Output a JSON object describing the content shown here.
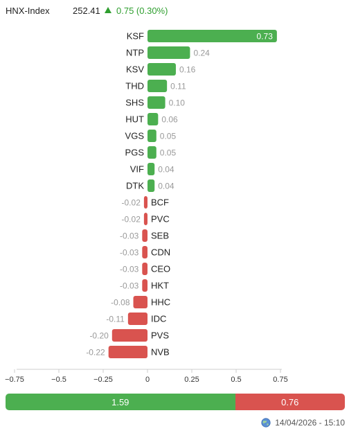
{
  "header": {
    "index_name": "HNX-Index",
    "index_value": "252.41",
    "change": "0.75 (0.30%)",
    "up_color": "#2e9e2e",
    "arrow_icon": "up-triangle-icon"
  },
  "chart_data": {
    "type": "bar",
    "orientation": "horizontal",
    "categories": [
      "KSF",
      "NTP",
      "KSV",
      "THD",
      "SHS",
      "HUT",
      "VGS",
      "PGS",
      "VIF",
      "DTK",
      "BCF",
      "PVC",
      "SEB",
      "CDN",
      "CEO",
      "HKT",
      "HHC",
      "IDC",
      "PVS",
      "NVB"
    ],
    "values": [
      0.73,
      0.24,
      0.16,
      0.11,
      0.1,
      0.06,
      0.05,
      0.05,
      0.04,
      0.04,
      -0.02,
      -0.02,
      -0.03,
      -0.03,
      -0.03,
      -0.03,
      -0.08,
      -0.11,
      -0.2,
      -0.22
    ],
    "labels": [
      "0.73",
      "0.24",
      "0.16",
      "0.11",
      "0.10",
      "0.06",
      "0.05",
      "0.05",
      "0.04",
      "0.04",
      "-0.02",
      "-0.02",
      "-0.03",
      "-0.03",
      "-0.03",
      "-0.03",
      "-0.08",
      "-0.11",
      "-0.20",
      "-0.22"
    ],
    "xlim": [
      -0.75,
      0.75
    ],
    "xticks": [
      -0.75,
      -0.5,
      -0.25,
      0,
      0.25,
      0.5,
      0.75
    ],
    "xtick_labels": [
      "−0.75",
      "−0.5",
      "−0.25",
      "0",
      "0.25",
      "0.5",
      "0.75"
    ],
    "positive_color": "#4caf50",
    "negative_color": "#d9534f",
    "grid": false
  },
  "footer_bar": {
    "advance_value": "1.59",
    "decline_value": "0.76",
    "advance_amount": 1.59,
    "decline_amount": 0.76
  },
  "timestamp": {
    "icon": "globe-icon",
    "text": "14/04/2026 - 15:10"
  }
}
